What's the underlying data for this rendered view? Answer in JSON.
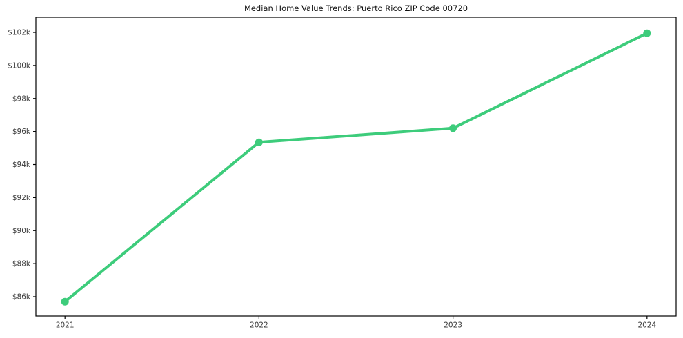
{
  "page": {
    "background": "#ffffff"
  },
  "chart": {
    "title": "Median Home Value Trends: Puerto Rico ZIP Code 00720"
  },
  "chart_data": {
    "type": "line",
    "title": "Median Home Value Trends: Puerto Rico ZIP Code 00720",
    "x": [
      2021,
      2022,
      2023,
      2024
    ],
    "x_tick_labels": [
      "2021",
      "2022",
      "2023",
      "2024"
    ],
    "values": [
      85700,
      95350,
      96200,
      101950
    ],
    "y_ticks": [
      86000,
      88000,
      90000,
      92000,
      94000,
      96000,
      98000,
      100000,
      102000
    ],
    "y_tick_labels": [
      "$86k",
      "$88k",
      "$90k",
      "$92k",
      "$94k",
      "$96k",
      "$98k",
      "$100k",
      "$102k"
    ],
    "xlim": [
      2020.85,
      2024.15
    ],
    "ylim": [
      84830,
      102920
    ],
    "grid": false,
    "legend": false,
    "line_color": "#3dcc7b",
    "marker": "circle",
    "axis_color": "#000000",
    "tick_label_color": "#3b3b3b",
    "title_color": "#111111"
  }
}
